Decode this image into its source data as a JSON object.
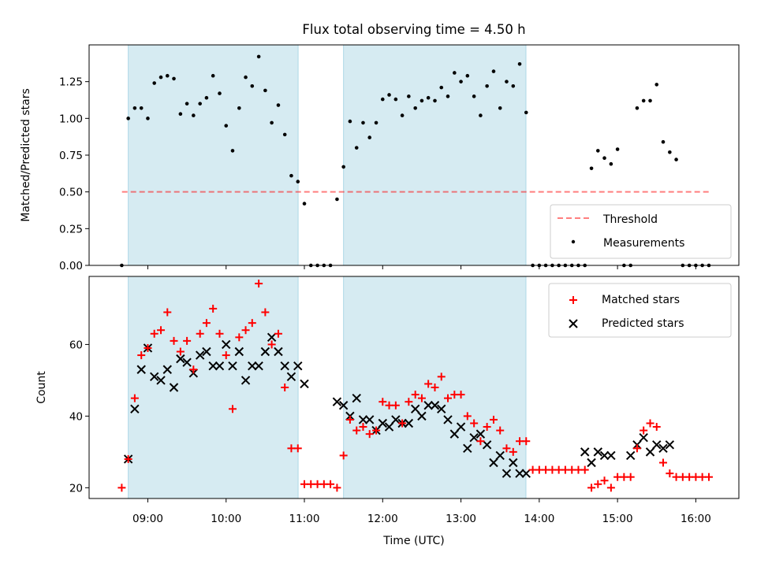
{
  "title": "Flux total observing time = 4.50 h",
  "colors": {
    "span": "#add8e6",
    "threshold": "#ff0000",
    "matched": "#ff0000",
    "predicted": "#000000",
    "measurement": "#000000"
  },
  "chart_data": [
    {
      "type": "scatter",
      "panel": "top",
      "title": "Flux total observing time = 4.50 h",
      "xlabel": "",
      "ylabel": "Matched/Predicted stars",
      "xlim": [
        8.25,
        16.55
      ],
      "ylim": [
        0.0,
        1.5
      ],
      "yticks": [
        0.0,
        0.25,
        0.5,
        0.75,
        1.0,
        1.25
      ],
      "ytick_labels": [
        "0.00",
        "0.25",
        "0.50",
        "0.75",
        "1.00",
        "1.25"
      ],
      "xticks": [
        9,
        10,
        11,
        12,
        13,
        14,
        15,
        16
      ],
      "legend_position": "lower-right",
      "legend": {
        "threshold": "Threshold",
        "measurements": "Measurements"
      },
      "threshold": {
        "label": "Threshold",
        "value": 0.5,
        "x_range": [
          8.67,
          16.17
        ]
      },
      "observing_spans": [
        [
          8.75,
          10.92
        ],
        [
          11.5,
          13.83
        ]
      ],
      "series": [
        {
          "name": "Measurements",
          "x": [
            8.667,
            8.75,
            8.833,
            8.917,
            9.0,
            9.083,
            9.167,
            9.25,
            9.333,
            9.417,
            9.5,
            9.583,
            9.667,
            9.75,
            9.833,
            9.917,
            10.0,
            10.083,
            10.167,
            10.25,
            10.333,
            10.417,
            10.5,
            10.583,
            10.667,
            10.75,
            10.833,
            10.917,
            11.0,
            11.083,
            11.167,
            11.25,
            11.333,
            11.417,
            11.5,
            11.583,
            11.667,
            11.75,
            11.833,
            11.917,
            12.0,
            12.083,
            12.167,
            12.25,
            12.333,
            12.417,
            12.5,
            12.583,
            12.667,
            12.75,
            12.833,
            12.917,
            13.0,
            13.083,
            13.167,
            13.25,
            13.333,
            13.417,
            13.5,
            13.583,
            13.667,
            13.75,
            13.833,
            13.917,
            14.0,
            14.083,
            14.167,
            14.25,
            14.333,
            14.417,
            14.5,
            14.583,
            14.667,
            14.75,
            14.833,
            14.917,
            15.0,
            15.083,
            15.167,
            15.25,
            15.333,
            15.417,
            15.5,
            15.583,
            15.667,
            15.75,
            15.833,
            15.917,
            16.0,
            16.083,
            16.167
          ],
          "y": [
            0.0,
            1.0,
            1.07,
            1.07,
            1.0,
            1.24,
            1.28,
            1.29,
            1.27,
            1.03,
            1.1,
            1.02,
            1.1,
            1.14,
            1.29,
            1.17,
            0.95,
            0.78,
            1.07,
            1.28,
            1.22,
            1.42,
            1.19,
            0.97,
            1.09,
            0.89,
            0.61,
            0.57,
            0.42,
            0.0,
            0.0,
            0.0,
            0.0,
            0.45,
            0.67,
            0.98,
            0.8,
            0.97,
            0.87,
            0.97,
            1.13,
            1.16,
            1.13,
            1.02,
            1.15,
            1.07,
            1.12,
            1.14,
            1.12,
            1.21,
            1.15,
            1.31,
            1.25,
            1.29,
            1.15,
            1.02,
            1.22,
            1.32,
            1.07,
            1.25,
            1.22,
            1.37,
            1.04,
            0.0,
            0.0,
            0.0,
            0.0,
            0.0,
            0.0,
            0.0,
            0.0,
            0.0,
            0.66,
            0.78,
            0.73,
            0.69,
            0.79,
            0.0,
            0.0,
            1.07,
            1.12,
            1.12,
            1.23,
            0.84,
            0.77,
            0.72,
            0.0,
            0.0,
            0.0,
            0.0,
            0.0
          ]
        }
      ]
    },
    {
      "type": "scatter",
      "panel": "bottom",
      "title": "",
      "xlabel": "Time (UTC)",
      "ylabel": "Count",
      "xlim": [
        8.25,
        16.55
      ],
      "ylim": [
        17,
        79
      ],
      "yticks": [
        20,
        40,
        60
      ],
      "xticks": [
        9,
        10,
        11,
        12,
        13,
        14,
        15,
        16
      ],
      "xtick_labels": [
        "09:00",
        "10:00",
        "11:00",
        "12:00",
        "13:00",
        "14:00",
        "15:00",
        "16:00"
      ],
      "legend_position": "upper-right",
      "legend": {
        "matched": "Matched stars",
        "predicted": "Predicted stars"
      },
      "observing_spans": [
        [
          8.75,
          10.92
        ],
        [
          11.5,
          13.83
        ]
      ],
      "series": [
        {
          "name": "Matched stars",
          "marker": "plus",
          "x": [
            8.667,
            8.75,
            8.833,
            8.917,
            9.0,
            9.083,
            9.167,
            9.25,
            9.333,
            9.417,
            9.5,
            9.583,
            9.667,
            9.75,
            9.833,
            9.917,
            10.0,
            10.083,
            10.167,
            10.25,
            10.333,
            10.417,
            10.5,
            10.583,
            10.667,
            10.75,
            10.833,
            10.917,
            11.0,
            11.083,
            11.167,
            11.25,
            11.333,
            11.417,
            11.5,
            11.583,
            11.667,
            11.75,
            11.833,
            11.917,
            12.0,
            12.083,
            12.167,
            12.25,
            12.333,
            12.417,
            12.5,
            12.583,
            12.667,
            12.75,
            12.833,
            12.917,
            13.0,
            13.083,
            13.167,
            13.25,
            13.333,
            13.417,
            13.5,
            13.583,
            13.667,
            13.75,
            13.833,
            13.917,
            14.0,
            14.083,
            14.167,
            14.25,
            14.333,
            14.417,
            14.5,
            14.583,
            14.667,
            14.75,
            14.833,
            14.917,
            15.0,
            15.083,
            15.167,
            15.25,
            15.333,
            15.417,
            15.5,
            15.583,
            15.667,
            15.75,
            15.833,
            15.917,
            16.0,
            16.083,
            16.167
          ],
          "y": [
            20,
            28,
            45,
            57,
            59,
            63,
            64,
            69,
            61,
            58,
            61,
            53,
            63,
            66,
            70,
            63,
            57,
            42,
            62,
            64,
            66,
            77,
            69,
            60,
            63,
            48,
            31,
            31,
            21,
            21,
            21,
            21,
            21,
            20,
            29,
            39,
            36,
            37,
            35,
            36,
            44,
            43,
            43,
            38,
            44,
            46,
            45,
            49,
            48,
            51,
            45,
            46,
            46,
            40,
            38,
            33,
            37,
            39,
            36,
            31,
            30,
            33,
            33,
            25,
            25,
            25,
            25,
            25,
            25,
            25,
            25,
            25,
            20,
            21,
            22,
            20,
            23,
            23,
            23,
            31,
            36,
            38,
            37,
            27,
            24,
            23,
            23,
            23,
            23,
            23,
            23
          ]
        },
        {
          "name": "Predicted stars",
          "marker": "x",
          "x": [
            8.75,
            8.833,
            8.917,
            9.0,
            9.083,
            9.167,
            9.25,
            9.333,
            9.417,
            9.5,
            9.583,
            9.667,
            9.75,
            9.833,
            9.917,
            10.0,
            10.083,
            10.167,
            10.25,
            10.333,
            10.417,
            10.5,
            10.583,
            10.667,
            10.75,
            10.833,
            10.917,
            11.0,
            11.417,
            11.5,
            11.583,
            11.667,
            11.75,
            11.833,
            11.917,
            12.0,
            12.083,
            12.167,
            12.25,
            12.333,
            12.417,
            12.5,
            12.583,
            12.667,
            12.75,
            12.833,
            12.917,
            13.0,
            13.083,
            13.167,
            13.25,
            13.333,
            13.417,
            13.5,
            13.583,
            13.667,
            13.75,
            13.833,
            14.583,
            14.667,
            14.75,
            14.833,
            14.917,
            15.167,
            15.25,
            15.333,
            15.417,
            15.5,
            15.583,
            15.667
          ],
          "y": [
            28,
            42,
            53,
            59,
            51,
            50,
            53,
            48,
            56,
            55,
            52,
            57,
            58,
            54,
            54,
            60,
            54,
            58,
            50,
            54,
            54,
            58,
            62,
            58,
            54,
            51,
            54,
            49,
            44,
            43,
            40,
            45,
            39,
            39,
            36,
            38,
            37,
            39,
            38,
            38,
            42,
            40,
            43,
            43,
            42,
            39,
            35,
            37,
            31,
            34,
            35,
            32,
            27,
            29,
            24,
            27,
            24,
            24,
            30,
            27,
            30,
            29,
            29,
            29,
            32,
            34,
            30,
            32,
            31,
            32
          ]
        }
      ]
    }
  ]
}
